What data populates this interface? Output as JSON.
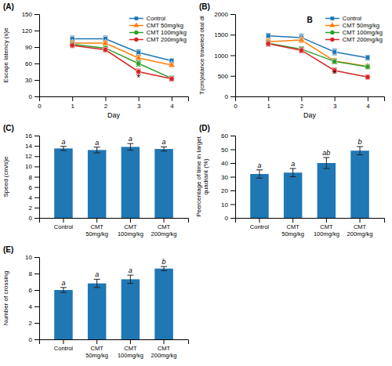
{
  "chart_data": [
    {
      "type": "line",
      "title": "(A)",
      "x_label": "Day",
      "y_label": "Escape latency (s)e",
      "x": [
        1,
        2,
        3,
        4
      ],
      "xlim": [
        0,
        4.5
      ],
      "xticks": [
        0,
        1,
        2,
        3,
        4
      ],
      "ylim": [
        0,
        150
      ],
      "yticks": [
        0,
        30,
        60,
        90,
        120,
        150
      ],
      "legend": "upper right",
      "series": [
        {
          "name": "Control",
          "marker": "square",
          "values": [
            105,
            105,
            80,
            65
          ],
          "errors": [
            5,
            5,
            5,
            4
          ]
        },
        {
          "name": "CMT 50mg/kg",
          "marker": "triangle",
          "values": [
            97,
            97,
            70,
            57
          ],
          "errors": [
            4,
            4,
            4,
            3
          ]
        },
        {
          "name": "CMT 100mg/kg",
          "marker": "circle",
          "values": [
            95,
            88,
            60,
            33
          ],
          "errors": [
            4,
            4,
            5,
            4
          ]
        },
        {
          "name": "CMT 200mg/kg",
          "marker": "circle",
          "values": [
            93,
            85,
            45,
            32
          ],
          "errors": [
            4,
            4,
            5,
            4
          ]
        }
      ],
      "annotations": [
        {
          "text": "*",
          "x": 3,
          "y": 28
        }
      ]
    },
    {
      "type": "line",
      "title": "(B)",
      "x_label": "Day",
      "y_label": "T(cm)istance traveled otal di",
      "x": [
        1,
        2,
        3,
        4
      ],
      "xlim": [
        0,
        4.5
      ],
      "xticks": [
        0,
        1,
        2,
        3,
        4
      ],
      "ylim": [
        0,
        2000
      ],
      "yticks": [
        0,
        500,
        1000,
        1500,
        2000
      ],
      "legend": "upper right",
      "series": [
        {
          "name": "Control",
          "marker": "square",
          "values": [
            1470,
            1430,
            1080,
            940
          ],
          "errors": [
            60,
            80,
            70,
            60
          ]
        },
        {
          "name": "CMT 50mg/kg",
          "marker": "triangle",
          "values": [
            1330,
            1370,
            860,
            730
          ],
          "errors": [
            60,
            60,
            60,
            50
          ]
        },
        {
          "name": "CMT 100mg/kg",
          "marker": "circle",
          "values": [
            1290,
            1150,
            850,
            720
          ],
          "errors": [
            60,
            60,
            60,
            50
          ]
        },
        {
          "name": "CMT 200mg/kg",
          "marker": "circle",
          "values": [
            1280,
            1120,
            630,
            470
          ],
          "errors": [
            60,
            60,
            60,
            50
          ]
        }
      ],
      "annotations": [
        {
          "text": "B"
        },
        {
          "text": "*",
          "x": 3,
          "y": 470
        }
      ]
    },
    {
      "type": "bar",
      "title": "(C)",
      "y_label": "Speed (cm/s)e",
      "categories": [
        "Control",
        "CMT\n50mg/kg",
        "CMT\n100mg/kg",
        "CMT\n200mg/kg"
      ],
      "values": [
        13.5,
        13.2,
        13.8,
        13.4
      ],
      "errors": [
        0.4,
        0.55,
        0.65,
        0.4
      ],
      "annotations": [
        {
          "text": "a"
        },
        {
          "text": "a"
        },
        {
          "text": "a"
        },
        {
          "text": "a"
        }
      ],
      "ylim": [
        0,
        16
      ],
      "yticks": [
        0,
        2,
        4,
        6,
        8,
        10,
        12,
        14,
        16
      ]
    },
    {
      "type": "bar",
      "title": "(D)",
      "y_label": "Peercentage of time in target\nquadrant (%)",
      "categories": [
        "Control",
        "CMT\n50mg/kg",
        "CMT\n100mg/kg",
        "CMT\n200mg/kg"
      ],
      "values": [
        32,
        33,
        40,
        49
      ],
      "errors": [
        3,
        3,
        4,
        3
      ],
      "annotations": [
        {
          "text": "a"
        },
        {
          "text": "a"
        },
        {
          "text": "ab"
        },
        {
          "text": "b"
        }
      ],
      "ylim": [
        0,
        60
      ],
      "yticks": [
        0,
        10,
        20,
        30,
        40,
        50,
        60
      ]
    },
    {
      "type": "bar",
      "title": "(E)",
      "y_label": "Number of crossing",
      "categories": [
        "Control",
        "CMT\n50mg/kg",
        "CMT\n100mg/kg",
        "CMT\n200mg/kg"
      ],
      "values": [
        6.0,
        6.8,
        7.3,
        8.6
      ],
      "errors": [
        0.3,
        0.5,
        0.5,
        0.25
      ],
      "annotations": [
        {
          "text": "a"
        },
        {
          "text": "a"
        },
        {
          "text": "a"
        },
        {
          "text": "b"
        }
      ],
      "ylim": [
        0,
        10
      ],
      "yticks": [
        0,
        2,
        4,
        6,
        8,
        10
      ]
    }
  ]
}
